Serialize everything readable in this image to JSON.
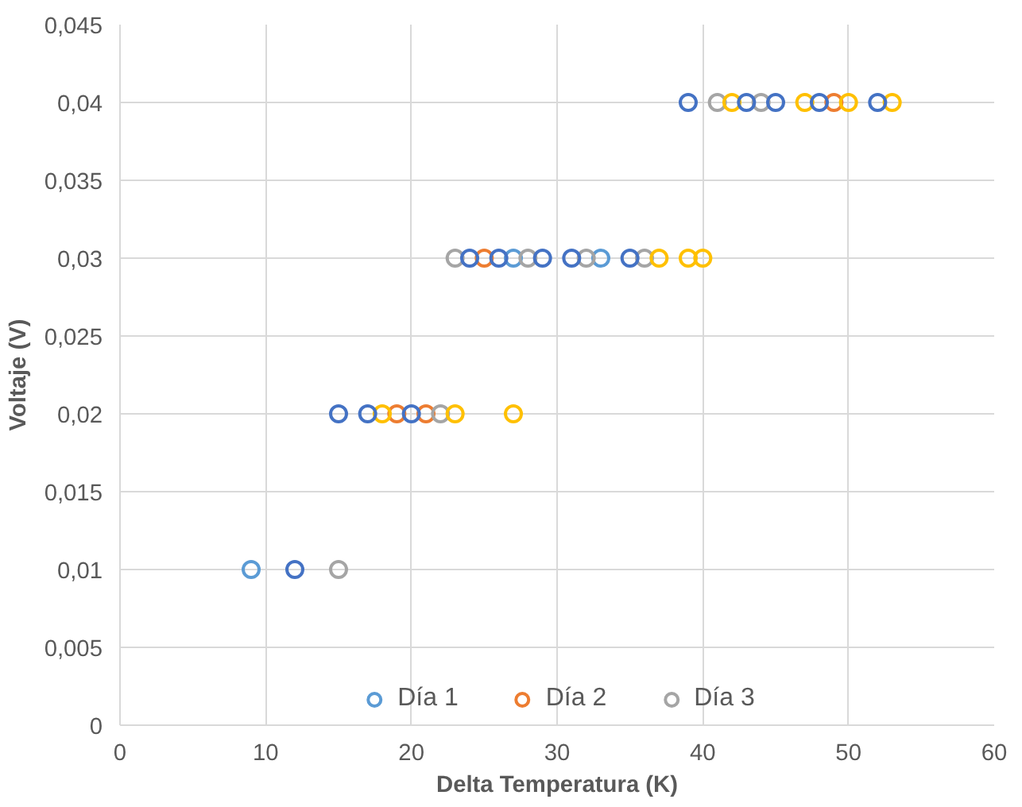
{
  "chart_data": {
    "type": "scatter",
    "xlabel": "Delta Temperatura (K)",
    "ylabel": "Voltaje (V)",
    "series": [
      {
        "name": "Día 1",
        "color": "#5b9bd5",
        "x": [
          9,
          27,
          33
        ],
        "values": [
          0.01,
          0.03,
          0.03
        ]
      },
      {
        "name": "Día 2",
        "color": "#ed7d31",
        "x": [
          19,
          21,
          25,
          49
        ],
        "values": [
          0.02,
          0.02,
          0.03,
          0.04
        ]
      },
      {
        "name": "Día 3",
        "color": "#a5a5a5",
        "x": [
          15,
          22,
          23,
          28,
          32,
          36,
          41,
          44
        ],
        "values": [
          0.01,
          0.02,
          0.03,
          0.03,
          0.03,
          0.03,
          0.04,
          0.04
        ]
      },
      {
        "color": "#ffc000",
        "x": [
          18,
          23,
          27,
          37,
          39,
          40,
          42,
          47,
          50,
          53
        ],
        "values": [
          0.02,
          0.02,
          0.02,
          0.03,
          0.03,
          0.03,
          0.04,
          0.04,
          0.04,
          0.04
        ]
      },
      {
        "color": "#4472c4",
        "x": [
          12,
          15,
          17,
          20,
          24,
          26,
          29,
          31,
          35,
          39,
          43,
          45,
          48,
          52
        ],
        "values": [
          0.01,
          0.02,
          0.02,
          0.02,
          0.03,
          0.03,
          0.03,
          0.03,
          0.03,
          0.04,
          0.04,
          0.04,
          0.04,
          0.04
        ]
      }
    ],
    "xlim": [
      0,
      60
    ],
    "xticks": [
      0,
      10,
      20,
      30,
      40,
      50,
      60
    ],
    "ylim": [
      0,
      0.045
    ],
    "yticks": [
      0,
      {
        "value": 0.005,
        "label": "0,005"
      },
      {
        "value": 0.01,
        "label": "0,01"
      },
      {
        "value": 0.015,
        "label": "0,015"
      },
      {
        "value": 0.02,
        "label": "0,02"
      },
      {
        "value": 0.025,
        "label": "0,025"
      },
      {
        "value": 0.03,
        "label": "0,03"
      },
      {
        "value": 0.035,
        "label": "0,035"
      },
      {
        "value": 0.04,
        "label": "0,04"
      },
      {
        "value": 0.045,
        "label": "0,045"
      }
    ],
    "grid": true,
    "legend": "bottom",
    "marker": "circle"
  }
}
